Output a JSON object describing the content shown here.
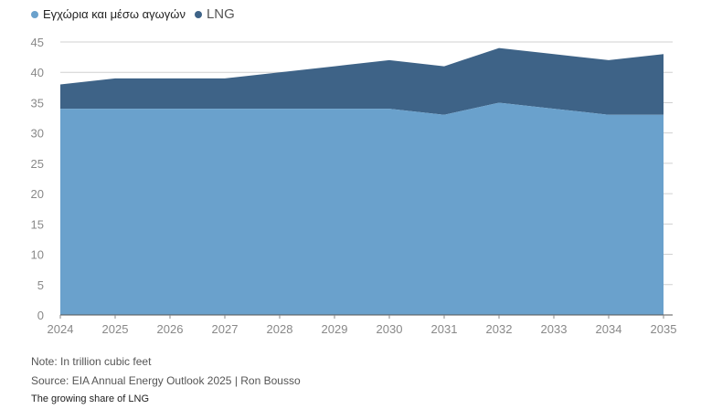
{
  "legend": [
    {
      "label": "Εγχώρια και μέσω αγωγών",
      "color": "#6aa1cc"
    },
    {
      "label": "LNG",
      "color": "#3e6387"
    }
  ],
  "note": "Note: In trillion cubic feet",
  "source": "Source: EIA Annual Energy Outlook 2025 | Ron Bousso",
  "caption": "The growing share of LNG",
  "chart_data": {
    "type": "area",
    "stacked": true,
    "x": [
      "2024",
      "2025",
      "2026",
      "2027",
      "2028",
      "2029",
      "2030",
      "2031",
      "2032",
      "2033",
      "2034",
      "2035"
    ],
    "ylim": [
      0,
      45
    ],
    "yticks": [
      0,
      5,
      10,
      15,
      20,
      25,
      30,
      35,
      40,
      45
    ],
    "grid": true,
    "legend_position": "top-left",
    "series": [
      {
        "name": "Εγχώρια και μέσω αγωγών",
        "color": "#6aa1cc",
        "values": [
          34,
          34,
          34,
          34,
          34,
          34,
          34,
          33,
          35,
          34,
          33,
          33
        ]
      },
      {
        "name": "LNG",
        "color": "#3e6387",
        "values": [
          4,
          5,
          5,
          5,
          6,
          7,
          8,
          8,
          9,
          9,
          9,
          10
        ]
      }
    ]
  }
}
